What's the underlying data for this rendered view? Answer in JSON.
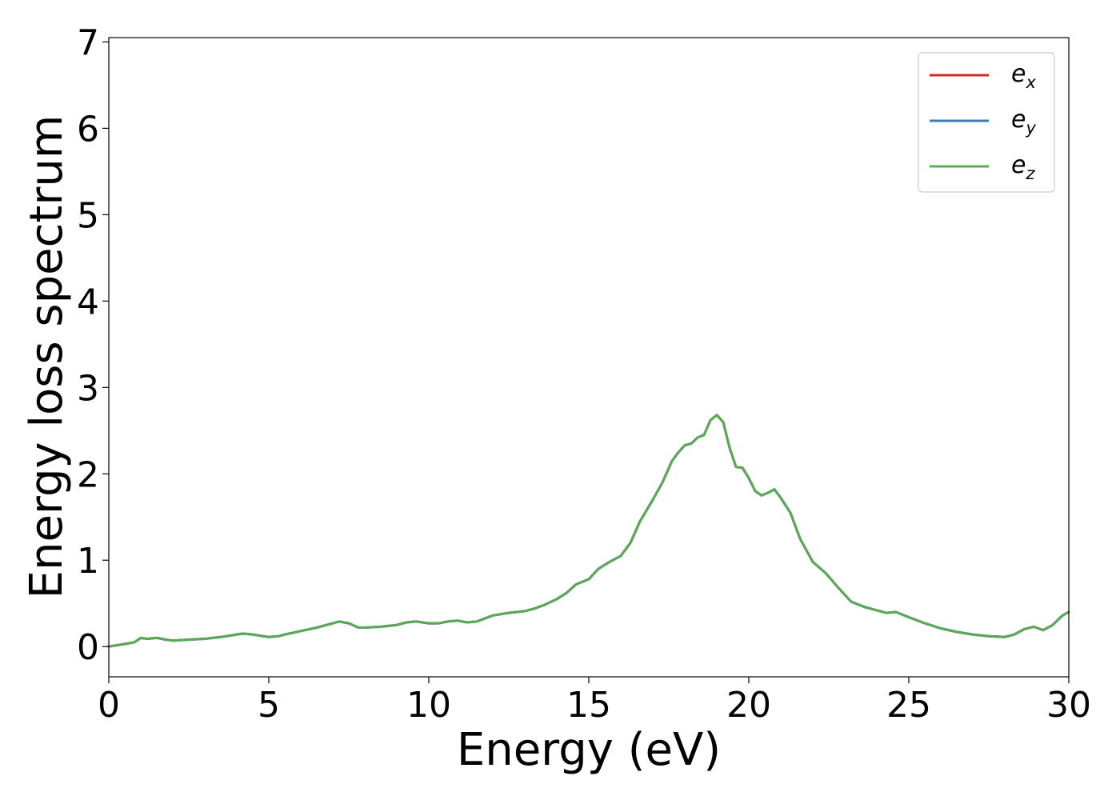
{
  "chart_data": {
    "type": "line",
    "title": "",
    "xlabel": "Energy (eV)",
    "ylabel": "Energy loss spectrum",
    "xlim": [
      0,
      30
    ],
    "ylim": [
      -0.35,
      7.05
    ],
    "xticks": [
      "0",
      "5",
      "10",
      "15",
      "20",
      "25",
      "30"
    ],
    "yticks": [
      "0",
      "1",
      "2",
      "3",
      "4",
      "5",
      "6",
      "7"
    ],
    "grid": false,
    "legend": {
      "position": "top-right",
      "entries": [
        {
          "base": "e",
          "sub": "x",
          "color": "#d62728"
        },
        {
          "base": "e",
          "sub": "y",
          "color": "#3b7dbf"
        },
        {
          "base": "e",
          "sub": "z",
          "color": "#5aaa55"
        }
      ]
    },
    "x": [
      0,
      0.5,
      0.8,
      1.0,
      1.2,
      1.5,
      1.8,
      2.0,
      3.0,
      3.5,
      4.0,
      4.2,
      4.5,
      5.0,
      5.3,
      5.5,
      6.0,
      6.5,
      7.0,
      7.2,
      7.5,
      7.8,
      8.0,
      8.5,
      9.0,
      9.3,
      9.6,
      10.0,
      10.3,
      10.6,
      10.9,
      11.2,
      11.5,
      12.0,
      12.5,
      13.0,
      13.3,
      13.6,
      14.0,
      14.3,
      14.6,
      15.0,
      15.3,
      15.6,
      16.0,
      16.3,
      16.6,
      17.0,
      17.3,
      17.6,
      17.8,
      18.0,
      18.2,
      18.4,
      18.6,
      18.8,
      19.0,
      19.2,
      19.4,
      19.6,
      19.8,
      20.0,
      20.2,
      20.4,
      20.6,
      20.8,
      21.0,
      21.3,
      21.6,
      22.0,
      22.4,
      22.8,
      23.2,
      23.6,
      24.0,
      24.3,
      24.6,
      25.0,
      25.5,
      26.0,
      26.5,
      27.0,
      27.5,
      28.0,
      28.3,
      28.6,
      28.9,
      29.2,
      29.5,
      29.8,
      30.0
    ],
    "series": [
      {
        "values": [
          0.0,
          0.03,
          0.05,
          0.1,
          0.09,
          0.1,
          0.08,
          0.07,
          0.09,
          0.11,
          0.14,
          0.15,
          0.14,
          0.11,
          0.12,
          0.14,
          0.18,
          0.22,
          0.27,
          0.29,
          0.27,
          0.22,
          0.22,
          0.23,
          0.25,
          0.28,
          0.29,
          0.27,
          0.27,
          0.29,
          0.3,
          0.28,
          0.29,
          0.36,
          0.39,
          0.41,
          0.44,
          0.48,
          0.55,
          0.62,
          0.72,
          0.78,
          0.9,
          0.97,
          1.05,
          1.2,
          1.45,
          1.7,
          1.9,
          2.15,
          2.25,
          2.33,
          2.35,
          2.42,
          2.45,
          2.62,
          2.68,
          2.6,
          2.3,
          2.08,
          2.07,
          1.95,
          1.8,
          1.75,
          1.78,
          1.82,
          1.72,
          1.55,
          1.25,
          0.98,
          0.85,
          0.68,
          0.52,
          0.46,
          0.42,
          0.39,
          0.4,
          0.34,
          0.27,
          0.21,
          0.17,
          0.14,
          0.12,
          0.11,
          0.14,
          0.2,
          0.23,
          0.19,
          0.25,
          0.36,
          0.4
        ]
      },
      {
        "values": [
          0.0,
          0.03,
          0.05,
          0.1,
          0.09,
          0.1,
          0.08,
          0.07,
          0.09,
          0.11,
          0.14,
          0.15,
          0.14,
          0.11,
          0.12,
          0.14,
          0.18,
          0.22,
          0.27,
          0.29,
          0.27,
          0.22,
          0.22,
          0.23,
          0.25,
          0.28,
          0.29,
          0.27,
          0.27,
          0.29,
          0.3,
          0.28,
          0.29,
          0.36,
          0.39,
          0.41,
          0.44,
          0.48,
          0.55,
          0.62,
          0.72,
          0.78,
          0.9,
          0.97,
          1.05,
          1.2,
          1.45,
          1.7,
          1.9,
          2.15,
          2.25,
          2.33,
          2.35,
          2.42,
          2.45,
          2.62,
          2.68,
          2.6,
          2.3,
          2.08,
          2.07,
          1.95,
          1.8,
          1.75,
          1.78,
          1.82,
          1.72,
          1.55,
          1.25,
          0.98,
          0.85,
          0.68,
          0.52,
          0.46,
          0.42,
          0.39,
          0.4,
          0.34,
          0.27,
          0.21,
          0.17,
          0.14,
          0.12,
          0.11,
          0.14,
          0.2,
          0.23,
          0.19,
          0.25,
          0.36,
          0.4
        ]
      },
      {
        "values": [
          0.0,
          0.03,
          0.05,
          0.1,
          0.09,
          0.1,
          0.08,
          0.07,
          0.09,
          0.11,
          0.14,
          0.15,
          0.14,
          0.11,
          0.12,
          0.14,
          0.18,
          0.22,
          0.27,
          0.29,
          0.27,
          0.22,
          0.22,
          0.23,
          0.25,
          0.28,
          0.29,
          0.27,
          0.27,
          0.29,
          0.3,
          0.28,
          0.29,
          0.36,
          0.39,
          0.41,
          0.44,
          0.48,
          0.55,
          0.62,
          0.72,
          0.78,
          0.9,
          0.97,
          1.05,
          1.2,
          1.45,
          1.7,
          1.9,
          2.15,
          2.25,
          2.33,
          2.35,
          2.42,
          2.45,
          2.62,
          2.68,
          2.6,
          2.3,
          2.08,
          2.07,
          1.95,
          1.8,
          1.75,
          1.78,
          1.82,
          1.72,
          1.55,
          1.25,
          0.98,
          0.85,
          0.68,
          0.52,
          0.46,
          0.42,
          0.39,
          0.4,
          0.34,
          0.27,
          0.21,
          0.17,
          0.14,
          0.12,
          0.11,
          0.14,
          0.2,
          0.23,
          0.19,
          0.25,
          0.36,
          0.4
        ]
      }
    ]
  }
}
